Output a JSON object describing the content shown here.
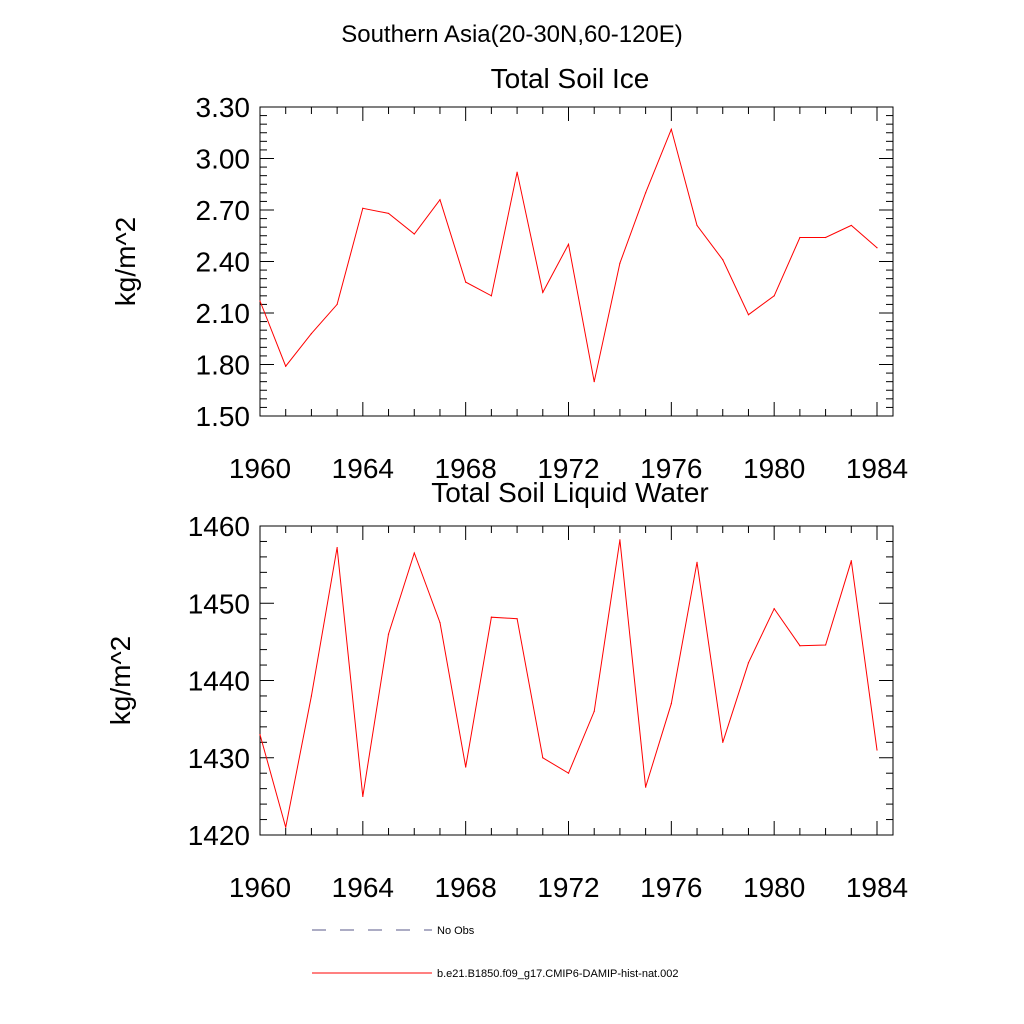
{
  "page_title": "Southern Asia(20-30N,60-120E)",
  "chart_data": [
    {
      "type": "line",
      "title": "Total Soil Ice",
      "xlabel": "",
      "ylabel": "kg/m^2",
      "xlim": [
        1960,
        1984
      ],
      "ylim": [
        1.5,
        3.3
      ],
      "xticks": [
        "1960",
        "1964",
        "1968",
        "1972",
        "1976",
        "1980",
        "1984"
      ],
      "yticks": [
        "1.50",
        "1.80",
        "2.10",
        "2.40",
        "2.70",
        "3.00",
        "3.30"
      ],
      "x": [
        1960,
        1961,
        1962,
        1963,
        1964,
        1965,
        1966,
        1967,
        1968,
        1969,
        1970,
        1971,
        1972,
        1973,
        1974,
        1975,
        1976,
        1977,
        1978,
        1979,
        1980,
        1981,
        1982,
        1983,
        1984
      ],
      "series": [
        {
          "name": "b.e21.B1850.f09_g17.CMIP6-DAMIP-hist-nat.002",
          "color": "#ff0000",
          "values": [
            2.17,
            1.79,
            1.98,
            2.15,
            2.71,
            2.68,
            2.56,
            2.76,
            2.28,
            2.2,
            2.92,
            2.22,
            2.5,
            1.7,
            2.39,
            2.8,
            3.17,
            2.61,
            2.41,
            2.09,
            2.2,
            2.54,
            2.54,
            2.61,
            2.48
          ]
        }
      ],
      "grid": false
    },
    {
      "type": "line",
      "title": "Total Soil Liquid Water",
      "xlabel": "",
      "ylabel": "kg/m^2",
      "xlim": [
        1960,
        1984
      ],
      "ylim": [
        1420,
        1460
      ],
      "xticks": [
        "1960",
        "1964",
        "1968",
        "1972",
        "1976",
        "1980",
        "1984"
      ],
      "yticks": [
        "1420",
        "1430",
        "1440",
        "1450",
        "1460"
      ],
      "x": [
        1960,
        1961,
        1962,
        1963,
        1964,
        1965,
        1966,
        1967,
        1968,
        1969,
        1970,
        1971,
        1972,
        1973,
        1974,
        1975,
        1976,
        1977,
        1978,
        1979,
        1980,
        1981,
        1982,
        1983,
        1984
      ],
      "series": [
        {
          "name": "b.e21.B1850.f09_g17.CMIP6-DAMIP-hist-nat.002",
          "color": "#ff0000",
          "values": [
            1433,
            1421,
            1438,
            1457.2,
            1425,
            1446,
            1456.5,
            1447.5,
            1428.8,
            1448.2,
            1448,
            1430,
            1428,
            1436,
            1458.2,
            1426.2,
            1437,
            1455.3,
            1432,
            1442.3,
            1449.3,
            1444.5,
            1444.6,
            1455.5,
            1431
          ]
        }
      ],
      "grid": false
    }
  ],
  "legend": {
    "placement": "bottom",
    "items": [
      {
        "label": "No Obs",
        "style": "dashed",
        "color": "#5a5a8a"
      },
      {
        "label": "b.e21.B1850.f09_g17.CMIP6-DAMIP-hist-nat.002",
        "style": "solid",
        "color": "#ff0000"
      }
    ]
  }
}
